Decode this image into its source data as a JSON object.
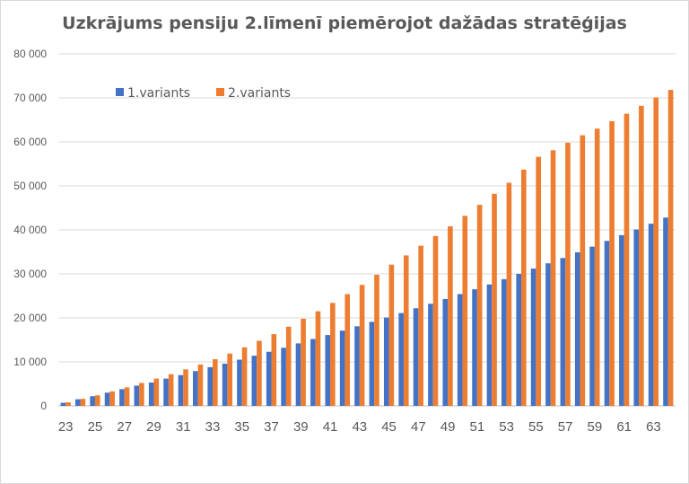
{
  "chart_data": {
    "type": "bar",
    "title": "Uzkrājums pensiju 2.līmenī piemērojot dažādas stratēģijas",
    "xlabel": "",
    "ylabel": "",
    "ylim": [
      0,
      80000
    ],
    "y_ticks": [
      0,
      10000,
      20000,
      30000,
      40000,
      50000,
      60000,
      70000,
      80000
    ],
    "y_tick_labels": [
      "0",
      "10 000",
      "20 000",
      "30 000",
      "40 000",
      "50 000",
      "60 000",
      "70 000",
      "80 000"
    ],
    "x_tick_labels": [
      "23",
      "25",
      "27",
      "29",
      "31",
      "33",
      "35",
      "37",
      "39",
      "41",
      "43",
      "45",
      "47",
      "49",
      "51",
      "53",
      "55",
      "57",
      "59",
      "61",
      "63"
    ],
    "grid": "horizontal",
    "legend_position": "top-left",
    "categories": [
      "23",
      "24",
      "25",
      "26",
      "27",
      "28",
      "29",
      "30",
      "31",
      "32",
      "33",
      "34",
      "35",
      "36",
      "37",
      "38",
      "39",
      "40",
      "41",
      "42",
      "43",
      "44",
      "45",
      "46",
      "47",
      "48",
      "49",
      "50",
      "51",
      "52",
      "53",
      "54",
      "55",
      "56",
      "57",
      "58",
      "59",
      "60",
      "61",
      "62",
      "63",
      "64"
    ],
    "series": [
      {
        "name": "1.variants",
        "color": "#4472C4",
        "values": [
          700,
          1500,
          2200,
          3000,
          3800,
          4600,
          5300,
          6200,
          7000,
          7900,
          8800,
          9600,
          10500,
          11400,
          12300,
          13200,
          14200,
          15200,
          16100,
          17100,
          18100,
          19100,
          20100,
          21100,
          22200,
          23200,
          24300,
          25400,
          26500,
          27600,
          28800,
          30000,
          31200,
          32400,
          33600,
          34900,
          36200,
          37500,
          38800,
          40100,
          41400,
          42800
        ]
      },
      {
        "name": "2.variants",
        "color": "#ED7D31",
        "values": [
          800,
          1600,
          2400,
          3300,
          4200,
          5200,
          6200,
          7200,
          8300,
          9400,
          10600,
          11900,
          13300,
          14800,
          16300,
          18000,
          19800,
          21500,
          23400,
          25400,
          27500,
          29800,
          32100,
          34200,
          36400,
          38600,
          40800,
          43200,
          45700,
          48200,
          50700,
          53700,
          56600,
          58100,
          59800,
          61500,
          63000,
          64700,
          66400,
          68200,
          70100,
          71800
        ]
      }
    ]
  }
}
